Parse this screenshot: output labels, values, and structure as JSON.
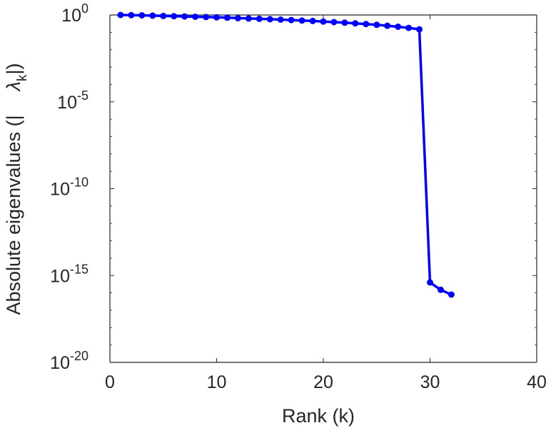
{
  "chart_data": {
    "type": "line",
    "title": "",
    "xlabel": "Rank (k)",
    "ylabel_prefix": "Absolute eigenvalues (|",
    "ylabel_lambda": "λ",
    "ylabel_sub": "k",
    "ylabel_suffix": "|)",
    "xscale": "linear",
    "yscale": "log",
    "xlim": [
      0,
      40
    ],
    "ylim": [
      1e-20,
      1
    ],
    "x_ticks": [
      0,
      10,
      20,
      30,
      40
    ],
    "x_tick_labels": [
      "0",
      "10",
      "20",
      "30",
      "40"
    ],
    "y_tick_exponents": [
      0,
      -5,
      -10,
      -15,
      -20
    ],
    "y_tick_base": "10",
    "y_tick_exponent_labels": [
      "0",
      "-5",
      "-10",
      "-15",
      "-20"
    ],
    "grid": false,
    "box": true,
    "series": [
      {
        "color": "#0000ff",
        "marker": "circle",
        "x": [
          1,
          2,
          3,
          4,
          5,
          6,
          7,
          8,
          9,
          10,
          11,
          12,
          13,
          14,
          15,
          16,
          17,
          18,
          19,
          20,
          21,
          22,
          23,
          24,
          25,
          26,
          27,
          28,
          29,
          30,
          31,
          32
        ],
        "y": [
          1.0,
          0.98,
          0.95,
          0.92,
          0.88,
          0.85,
          0.82,
          0.79,
          0.76,
          0.73,
          0.7,
          0.66,
          0.63,
          0.6,
          0.57,
          0.54,
          0.51,
          0.48,
          0.45,
          0.42,
          0.39,
          0.36,
          0.33,
          0.3,
          0.27,
          0.24,
          0.21,
          0.18,
          0.15,
          4e-16,
          1.5e-16,
          8e-17
        ]
      }
    ]
  }
}
